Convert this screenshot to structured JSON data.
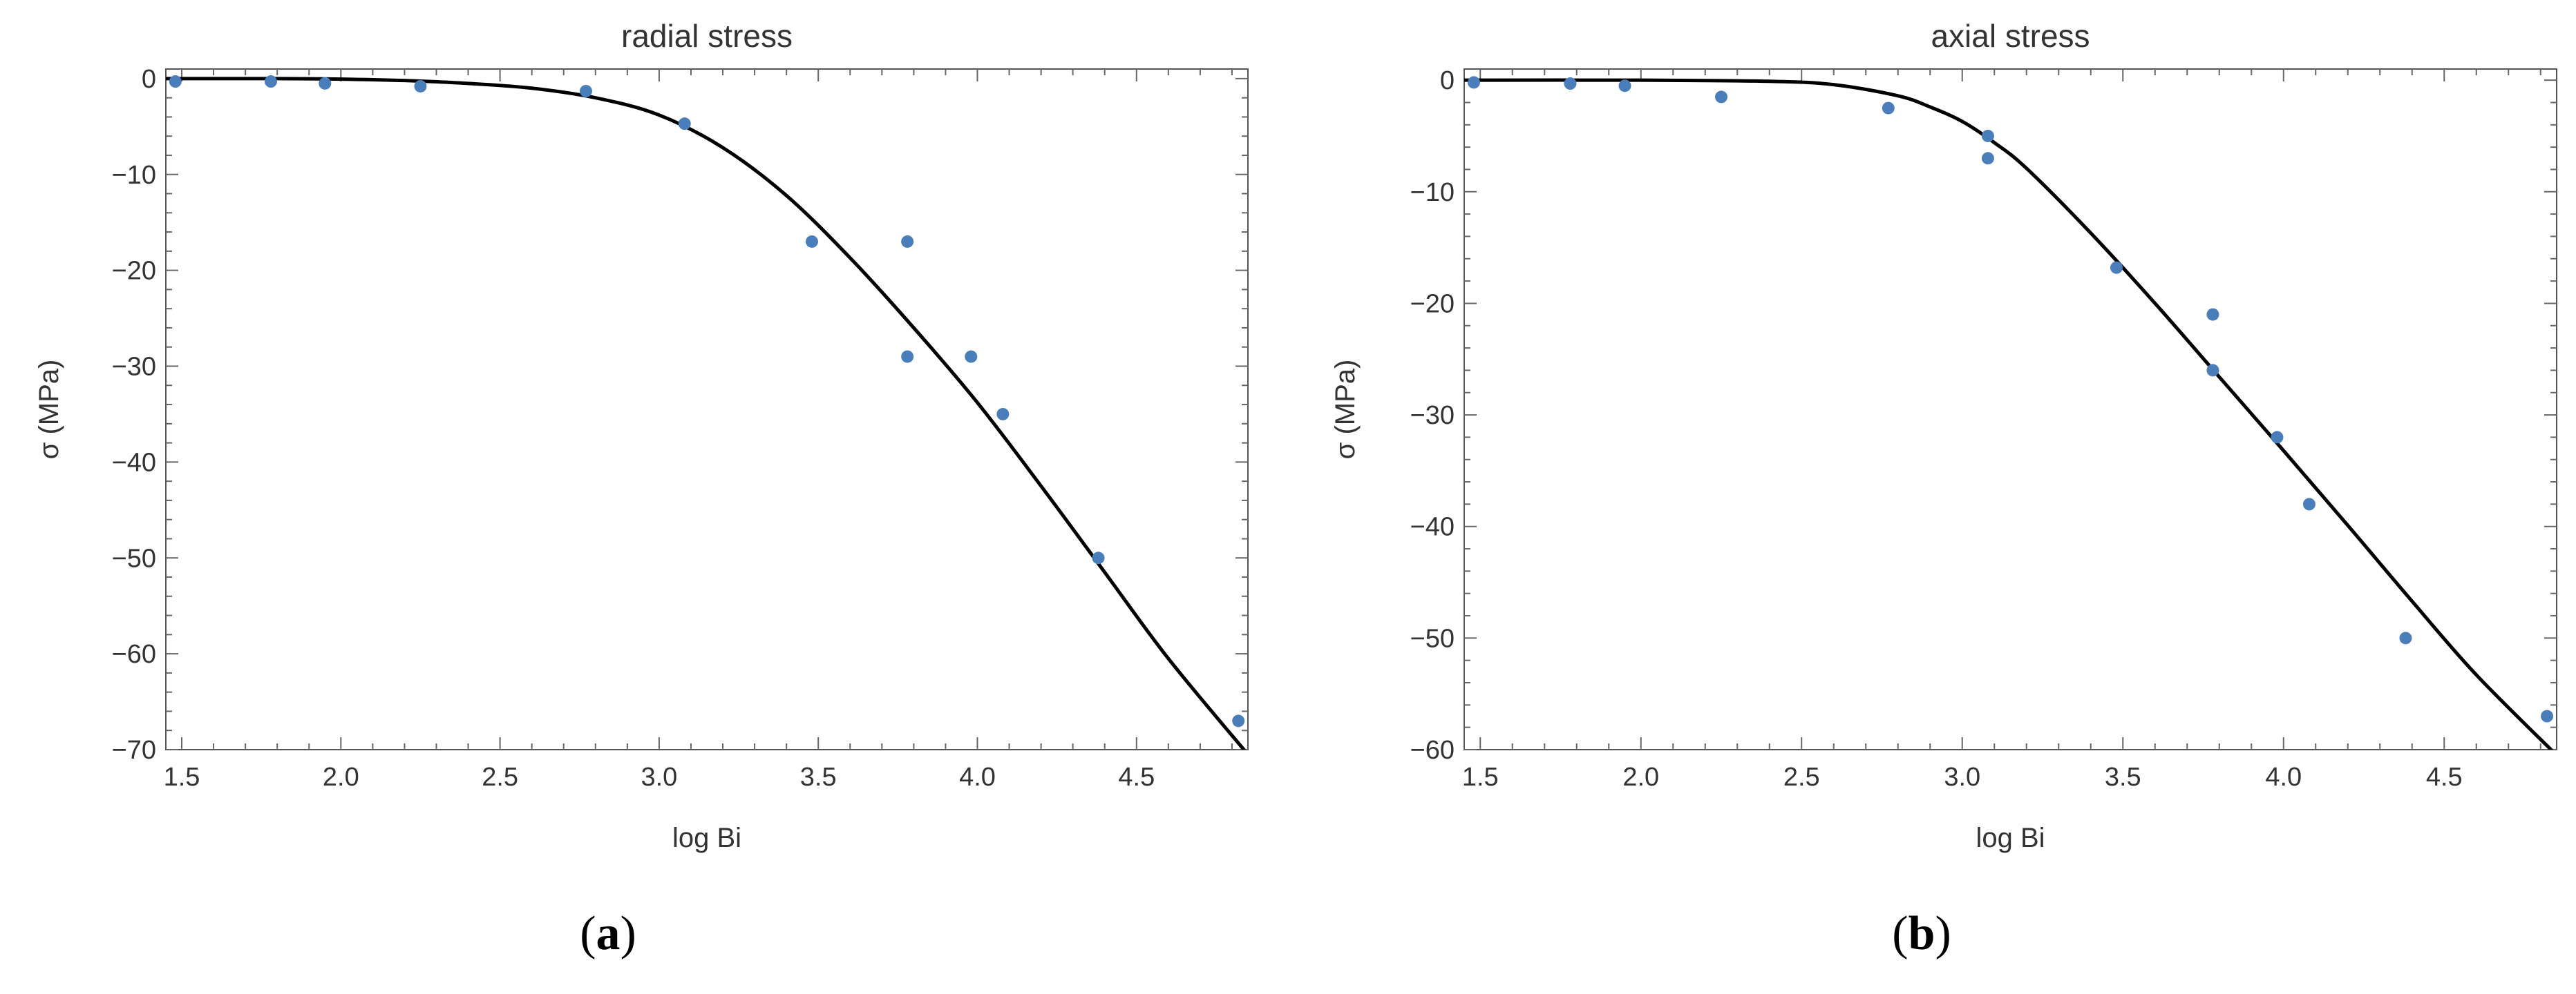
{
  "colors": {
    "point": "#4a7ebb",
    "curve": "#000000",
    "axis_text": "#333333",
    "frame": "#555555",
    "tick": "#666666"
  },
  "chart_data": [
    {
      "type": "scatter",
      "title": "radial stress",
      "xlabel": "log Bi",
      "ylabel": "σ  (MPa)",
      "panel_label": "a",
      "xlim": [
        1.45,
        4.85
      ],
      "ylim": [
        -70,
        1
      ],
      "xticks": [
        1.5,
        2.0,
        2.5,
        3.0,
        3.5,
        4.0,
        4.5
      ],
      "xtick_labels": [
        "1.5",
        "2.0",
        "2.5",
        "3.0",
        "3.5",
        "4.0",
        "4.5"
      ],
      "yticks": [
        0,
        -10,
        -20,
        -30,
        -40,
        -50,
        -60,
        -70
      ],
      "ytick_labels": [
        "0",
        "−10",
        "−20",
        "−30",
        "−40",
        "−50",
        "−60",
        "−70"
      ],
      "grid": false,
      "series": [
        {
          "values": [
            [
              1.48,
              -0.3
            ],
            [
              1.78,
              -0.3
            ],
            [
              1.95,
              -0.5
            ],
            [
              2.25,
              -0.8
            ],
            [
              2.77,
              -1.3
            ],
            [
              3.08,
              -4.7
            ],
            [
              3.48,
              -17
            ],
            [
              3.78,
              -17
            ],
            [
              3.78,
              -29
            ],
            [
              3.98,
              -29
            ],
            [
              4.08,
              -35
            ],
            [
              4.38,
              -50
            ],
            [
              4.82,
              -67
            ]
          ]
        }
      ],
      "fit_curve": [
        [
          1.45,
          0
        ],
        [
          1.8,
          0
        ],
        [
          2.0,
          -0.05
        ],
        [
          2.2,
          -0.2
        ],
        [
          2.4,
          -0.5
        ],
        [
          2.6,
          -1.0
        ],
        [
          2.8,
          -2.0
        ],
        [
          3.0,
          -3.8
        ],
        [
          3.2,
          -7.2
        ],
        [
          3.4,
          -12.2
        ],
        [
          3.6,
          -18.7
        ],
        [
          3.8,
          -26.0
        ],
        [
          4.0,
          -33.8
        ],
        [
          4.2,
          -42.5
        ],
        [
          4.4,
          -51.5
        ],
        [
          4.6,
          -60.5
        ],
        [
          4.85,
          -70.5
        ]
      ]
    },
    {
      "type": "scatter",
      "title": "axial stress",
      "xlabel": "log Bi",
      "ylabel": "σ  (MPa)",
      "panel_label": "b",
      "xlim": [
        1.45,
        4.85
      ],
      "ylim": [
        -60,
        1
      ],
      "xticks": [
        1.5,
        2.0,
        2.5,
        3.0,
        3.5,
        4.0,
        4.5
      ],
      "xtick_labels": [
        "1.5",
        "2.0",
        "2.5",
        "3.0",
        "3.5",
        "4.0",
        "4.5"
      ],
      "yticks": [
        0,
        -10,
        -20,
        -30,
        -40,
        -50,
        -60
      ],
      "ytick_labels": [
        "0",
        "−10",
        "−20",
        "−30",
        "−40",
        "−50",
        "−60"
      ],
      "grid": false,
      "series": [
        {
          "values": [
            [
              1.48,
              -0.2
            ],
            [
              1.78,
              -0.3
            ],
            [
              1.95,
              -0.5
            ],
            [
              2.25,
              -1.5
            ],
            [
              2.77,
              -2.5
            ],
            [
              3.08,
              -5
            ],
            [
              3.08,
              -7
            ],
            [
              3.48,
              -16.8
            ],
            [
              3.78,
              -21
            ],
            [
              3.78,
              -26
            ],
            [
              3.98,
              -32
            ],
            [
              4.08,
              -38
            ],
            [
              4.38,
              -50
            ],
            [
              4.82,
              -57
            ]
          ]
        }
      ],
      "fit_curve": [
        [
          1.45,
          0
        ],
        [
          2.0,
          0
        ],
        [
          2.4,
          -0.1
        ],
        [
          2.6,
          -0.4
        ],
        [
          2.8,
          -1.4
        ],
        [
          2.9,
          -2.4
        ],
        [
          3.0,
          -3.7
        ],
        [
          3.1,
          -5.6
        ],
        [
          3.2,
          -7.9
        ],
        [
          3.4,
          -13.7
        ],
        [
          3.6,
          -20.0
        ],
        [
          3.8,
          -26.6
        ],
        [
          4.0,
          -33.2
        ],
        [
          4.2,
          -39.9
        ],
        [
          4.4,
          -46.7
        ],
        [
          4.6,
          -53.3
        ],
        [
          4.85,
          -60.5
        ]
      ]
    }
  ]
}
